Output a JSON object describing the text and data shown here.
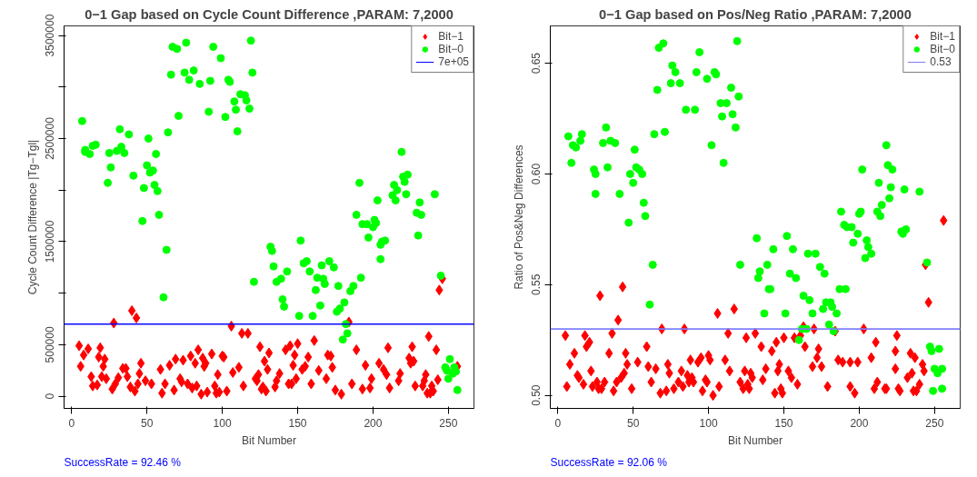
{
  "chart_data": [
    {
      "type": "scatter",
      "title": "0−1 Gap based on Cycle Count Difference ,PARAM: 7,2000",
      "xlabel": "Bit Number",
      "ylabel": "Cycle Count Difference |Tg−Tgl|",
      "xlim": [
        -5,
        267
      ],
      "ylim": [
        -118000,
        3593000
      ],
      "xticks": [
        0,
        50,
        100,
        150,
        200,
        250
      ],
      "yticks": [
        0,
        500000,
        {
          "value": 1000000,
          "label": null
        },
        1500000,
        {
          "value": 2000000,
          "label": null
        },
        2500000,
        {
          "value": 3000000,
          "label": null
        },
        3500000
      ],
      "legend": "top right",
      "annotations": [
        "SuccessRate =  92.46  %"
      ],
      "ref_lines": [
        {
          "axis": "y",
          "value": 700000,
          "label": "7e+05",
          "color": "#0000ff"
        }
      ],
      "series": [
        {
          "name": "Bit−1",
          "color": "#ff0000",
          "marker": "diamond",
          "x": [
            5,
            6,
            8,
            11,
            13,
            14,
            17,
            18,
            19,
            20,
            21,
            22,
            23,
            27,
            28,
            29,
            31,
            34,
            36,
            37,
            39,
            40,
            42,
            43,
            44,
            45,
            46,
            49,
            53,
            59,
            60,
            62,
            65,
            68,
            69,
            72,
            73,
            74,
            77,
            79,
            80,
            82,
            83,
            84,
            86,
            87,
            88,
            89,
            90,
            93,
            95,
            96,
            97,
            98,
            100,
            101,
            103,
            106,
            107,
            111,
            113,
            114,
            117,
            122,
            123,
            124,
            125,
            126,
            127,
            128,
            129,
            130,
            131,
            135,
            136,
            138,
            142,
            145,
            146,
            144,
            147,
            148,
            149,
            150,
            153,
            155,
            157,
            159,
            161,
            164,
            169,
            170,
            172,
            173,
            175,
            179,
            184,
            186,
            189,
            193,
            195,
            198,
            199,
            204,
            207,
            209,
            210,
            211,
            217,
            218,
            224,
            225,
            226,
            227,
            228,
            233,
            234,
            235,
            236,
            237,
            238,
            239,
            240,
            242,
            243,
            244,
            246,
            256
          ],
          "values": [
            490000,
            290000,
            400000,
            460000,
            190000,
            100000,
            110000,
            380000,
            470000,
            190000,
            290000,
            360000,
            170000,
            70000,
            710000,
            120000,
            180000,
            270000,
            270000,
            190000,
            90000,
            830000,
            50000,
            760000,
            120000,
            220000,
            320000,
            150000,
            120000,
            260000,
            30000,
            120000,
            300000,
            60000,
            360000,
            170000,
            140000,
            350000,
            120000,
            390000,
            80000,
            320000,
            100000,
            450000,
            20000,
            370000,
            290000,
            320000,
            40000,
            410000,
            100000,
            30000,
            210000,
            40000,
            390000,
            380000,
            50000,
            680000,
            230000,
            280000,
            610000,
            100000,
            610000,
            170000,
            150000,
            210000,
            480000,
            70000,
            90000,
            340000,
            50000,
            260000,
            420000,
            90000,
            150000,
            220000,
            450000,
            490000,
            120000,
            120000,
            300000,
            400000,
            170000,
            510000,
            260000,
            290000,
            380000,
            120000,
            540000,
            250000,
            170000,
            400000,
            390000,
            280000,
            60000,
            20000,
            720000,
            120000,
            450000,
            70000,
            300000,
            80000,
            170000,
            320000,
            260000,
            210000,
            470000,
            80000,
            150000,
            220000,
            370000,
            320000,
            480000,
            340000,
            100000,
            100000,
            150000,
            210000,
            30000,
            580000,
            30000,
            100000,
            50000,
            450000,
            160000,
            1030000,
            1140000,
            290000
          ]
        },
        {
          "name": "Bit−0",
          "color": "#00ff00",
          "marker": "circle",
          "x": [
            7,
            9,
            9,
            12,
            14,
            16,
            25,
            26,
            24,
            30,
            32,
            33,
            35,
            38,
            41,
            48,
            47,
            50,
            51,
            52,
            54,
            55,
            56,
            57,
            58,
            61,
            63,
            64,
            66,
            67,
            70,
            71,
            75,
            76,
            78,
            81,
            85,
            91,
            92,
            94,
            99,
            102,
            104,
            105,
            108,
            109,
            110,
            112,
            115,
            116,
            118,
            119,
            120,
            121,
            132,
            133,
            134,
            136,
            139,
            140,
            141,
            143,
            151,
            152,
            154,
            156,
            158,
            160,
            162,
            163,
            165,
            166,
            167,
            168,
            171,
            174,
            176,
            177,
            178,
            181,
            182,
            183,
            180,
            185,
            187,
            191,
            192,
            189,
            193,
            196,
            197,
            200,
            201,
            202,
            203,
            205,
            205,
            206,
            208,
            213,
            214,
            215,
            216,
            219,
            220,
            221,
            222,
            223,
            229,
            230,
            231,
            232,
            241,
            245,
            251,
            248,
            249,
            254,
            255,
            253,
            250,
            256
          ],
          "values": [
            2670000,
            2390000,
            2370000,
            2350000,
            2430000,
            2440000,
            2360000,
            2220000,
            2070000,
            2380000,
            2590000,
            2420000,
            2360000,
            2540000,
            2140000,
            2020000,
            1700000,
            2240000,
            2500000,
            2170000,
            2190000,
            2050000,
            2350000,
            1990000,
            1760000,
            960000,
            1420000,
            2560000,
            3120000,
            3390000,
            3370000,
            2720000,
            3140000,
            3430000,
            3070000,
            3160000,
            3030000,
            2760000,
            3060000,
            3390000,
            3280000,
            2710000,
            3070000,
            3050000,
            2860000,
            2780000,
            2570000,
            2930000,
            2920000,
            2870000,
            2790000,
            3450000,
            3140000,
            1110000,
            1450000,
            1410000,
            1260000,
            1110000,
            1140000,
            940000,
            870000,
            1210000,
            780000,
            1510000,
            1290000,
            1310000,
            1210000,
            780000,
            1030000,
            1150000,
            880000,
            1270000,
            1140000,
            1090000,
            1310000,
            1250000,
            820000,
            1070000,
            850000,
            910000,
            700000,
            610000,
            550000,
            1020000,
            1070000,
            2070000,
            1150000,
            1760000,
            1670000,
            1670000,
            1540000,
            1640000,
            1710000,
            1680000,
            1900000,
            1470000,
            1330000,
            1500000,
            1510000,
            1950000,
            2050000,
            1900000,
            2000000,
            2370000,
            2130000,
            2080000,
            1960000,
            2150000,
            1780000,
            1560000,
            1880000,
            1760000,
            1960000,
            1170000,
            360000,
            280000,
            250000,
            280000,
            240000,
            220000,
            170000,
            60000
          ]
        }
      ]
    },
    {
      "type": "scatter",
      "title": "0−1 Gap based on Pos/Neg Ratio ,PARAM: 7,2000",
      "xlabel": "Bit Number",
      "ylabel": "Ratio of Pos&Neg Differences",
      "xlim": [
        -5,
        267
      ],
      "ylim": [
        0.4941,
        0.6669
      ],
      "xticks": [
        0,
        50,
        100,
        150,
        200,
        250
      ],
      "yticks": [
        {
          "value": 0.5,
          "label": "0.50"
        },
        0.55,
        {
          "value": 0.6,
          "label": "0.60"
        },
        0.65
      ],
      "legend": "top right",
      "annotations": [
        "SuccessRate =  92.06  %"
      ],
      "ref_lines": [
        {
          "axis": "y",
          "value": 0.53,
          "label": "0.53",
          "color": "#7b7bff"
        }
      ],
      "series": [
        {
          "name": "Bit−1",
          "color": "#ff0000",
          "marker": "diamond",
          "x": [
            5,
            6,
            8,
            11,
            13,
            14,
            17,
            18,
            19,
            21,
            22,
            23,
            26,
            27,
            29,
            28,
            31,
            34,
            36,
            37,
            39,
            40,
            42,
            43,
            44,
            45,
            46,
            49,
            53,
            59,
            60,
            62,
            65,
            68,
            69,
            72,
            73,
            74,
            77,
            80,
            82,
            83,
            84,
            86,
            87,
            89,
            90,
            88,
            93,
            95,
            96,
            98,
            99,
            100,
            101,
            103,
            106,
            107,
            111,
            113,
            114,
            117,
            121,
            123,
            124,
            125,
            126,
            127,
            128,
            129,
            131,
            135,
            136,
            138,
            142,
            144,
            145,
            146,
            147,
            148,
            149,
            150,
            153,
            155,
            157,
            159,
            161,
            163,
            164,
            169,
            170,
            172,
            173,
            175,
            179,
            184,
            186,
            189,
            194,
            194,
            197,
            199,
            203,
            208,
            210,
            211,
            212,
            217,
            218,
            224,
            224,
            225,
            226,
            227,
            232,
            234,
            235,
            236,
            237,
            238,
            240,
            242,
            243,
            244,
            246,
            256
          ],
          "values": [
            0.527,
            0.504,
            0.514,
            0.519,
            0.509,
            0.508,
            0.505,
            0.527,
            0.522,
            0.524,
            0.511,
            0.504,
            0.506,
            0.503,
            0.503,
            0.545,
            0.506,
            0.519,
            0.528,
            0.502,
            0.506,
            0.534,
            0.508,
            0.549,
            0.51,
            0.519,
            0.514,
            0.503,
            0.515,
            0.522,
            0.513,
            0.506,
            0.512,
            0.501,
            0.53,
            0.502,
            0.514,
            0.51,
            0.503,
            0.506,
            0.511,
            0.504,
            0.53,
            0.509,
            0.506,
            0.508,
            0.506,
            0.516,
            0.515,
            0.517,
            0.502,
            0.507,
            0.506,
            0.518,
            0.516,
            0.5,
            0.537,
            0.504,
            0.516,
            0.528,
            0.511,
            0.539,
            0.506,
            0.503,
            0.511,
            0.526,
            0.505,
            0.503,
            0.51,
            0.508,
            0.528,
            0.522,
            0.507,
            0.512,
            0.52,
            0.501,
            0.524,
            0.511,
            0.514,
            0.503,
            0.501,
            0.526,
            0.511,
            0.508,
            0.526,
            0.505,
            0.527,
            0.531,
            0.522,
            0.513,
            0.53,
            0.517,
            0.521,
            0.513,
            0.504,
            0.529,
            0.516,
            0.515,
            0.504,
            0.515,
            0.501,
            0.515,
            0.53,
            0.517,
            0.503,
            0.524,
            0.506,
            0.503,
            0.503,
            0.512,
            0.52,
            0.527,
            0.503,
            0.502,
            0.508,
            0.519,
            0.51,
            0.502,
            0.517,
            0.502,
            0.505,
            0.514,
            0.511,
            0.559,
            0.542,
            0.579
          ]
        },
        {
          "name": "Bit−0",
          "color": "#00ff00",
          "marker": "circle",
          "x": [
            7,
            9,
            10,
            12,
            15,
            16,
            24,
            25,
            25,
            32,
            33,
            30,
            35,
            38,
            41,
            47,
            48,
            50,
            51,
            52,
            54,
            56,
            57,
            58,
            61,
            63,
            64,
            66,
            67,
            70,
            71,
            75,
            76,
            78,
            81,
            85,
            91,
            92,
            94,
            99,
            102,
            104,
            105,
            108,
            109,
            110,
            112,
            115,
            116,
            118,
            119,
            120,
            121,
            132,
            133,
            134,
            137,
            139,
            140,
            141,
            143,
            151,
            152,
            154,
            156,
            158,
            160,
            162,
            163,
            165,
            166,
            167,
            169,
            171,
            174,
            177,
            176,
            178,
            181,
            180,
            182,
            183,
            185,
            187,
            188,
            190,
            191,
            192,
            195,
            196,
            199,
            200,
            201,
            202,
            204,
            205,
            206,
            208,
            212,
            213,
            214,
            215,
            218,
            219,
            220,
            221,
            222,
            230,
            228,
            229,
            231,
            240,
            245,
            247,
            248,
            249,
            253,
            250,
            252,
            255,
            255
          ],
          "values": [
            0.617,
            0.605,
            0.613,
            0.612,
            0.615,
            0.618,
            0.602,
            0.6,
            0.591,
            0.621,
            0.603,
            0.614,
            0.615,
            0.614,
            0.591,
            0.578,
            0.6,
            0.596,
            0.611,
            0.603,
            0.602,
            0.6,
            0.587,
            0.581,
            0.541,
            0.559,
            0.618,
            0.638,
            0.657,
            0.659,
            0.619,
            0.641,
            0.649,
            0.646,
            0.641,
            0.629,
            0.629,
            0.646,
            0.655,
            0.643,
            0.613,
            0.646,
            0.645,
            0.632,
            0.626,
            0.605,
            0.632,
            0.639,
            0.627,
            0.621,
            0.66,
            0.635,
            0.559,
            0.571,
            0.553,
            0.556,
            0.537,
            0.559,
            0.548,
            0.548,
            0.566,
            0.537,
            0.572,
            0.555,
            0.566,
            0.553,
            0.525,
            0.53,
            0.545,
            0.53,
            0.564,
            0.543,
            0.537,
            0.564,
            0.558,
            0.555,
            0.539,
            0.542,
            0.542,
            0.532,
            0.54,
            0.529,
            0.537,
            0.548,
            0.583,
            0.577,
            0.548,
            0.576,
            0.576,
            0.569,
            0.573,
            0.582,
            0.583,
            0.602,
            0.562,
            0.57,
            0.567,
            0.564,
            0.583,
            0.596,
            0.581,
            0.586,
            0.613,
            0.604,
            0.589,
            0.594,
            0.602,
            0.593,
            0.574,
            0.573,
            0.575,
            0.592,
            0.56,
            0.522,
            0.52,
            0.502,
            0.521,
            0.512,
            0.51,
            0.512,
            0.503
          ]
        }
      ]
    }
  ]
}
